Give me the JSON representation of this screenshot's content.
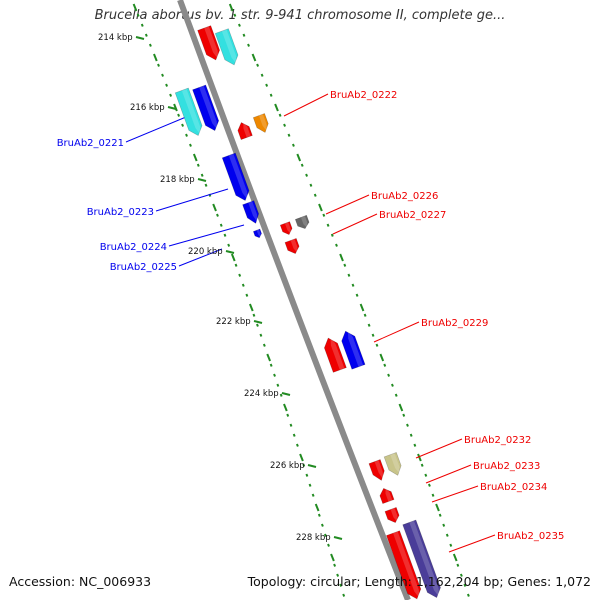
{
  "title": "Brucella abortus bv. 1 str. 9-941 chromosome II, complete ge...",
  "footer": {
    "accession": "Accession: NC_006933",
    "summary": "Topology: circular; Length: 1,162,204 bp; Genes: 1,072"
  },
  "ruler": [
    "214 kbp",
    "216 kbp",
    "218 kbp",
    "220 kbp",
    "222 kbp",
    "224 kbp",
    "226 kbp",
    "228 kbp"
  ],
  "labels": {
    "left": [
      "BruAb2_0221",
      "BruAb2_0223",
      "BruAb2_0224",
      "BruAb2_0225"
    ],
    "right": [
      "BruAb2_0222",
      "BruAb2_0226",
      "BruAb2_0227",
      "BruAb2_0229",
      "BruAb2_0232",
      "BruAb2_0233",
      "BruAb2_0234",
      "BruAb2_0235"
    ]
  },
  "colors": {
    "reverse": "#0000ee",
    "forward": "#ee0000",
    "backbone": "#8a8a8a",
    "tick": "#228b22",
    "cyan": "#33e0e0",
    "orange": "#ee8800",
    "gray": "#666666",
    "khaki": "#c8c48a",
    "slate": "#4a3d99"
  }
}
